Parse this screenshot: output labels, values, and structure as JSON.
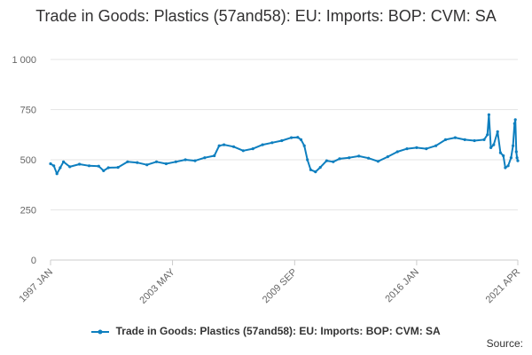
{
  "chart_data": {
    "type": "line",
    "title": "Trade in Goods: Plastics (57and58): EU: Imports: BOP: CVM: SA",
    "xlabel": "",
    "ylabel": "",
    "ylim": [
      0,
      1000
    ],
    "y_ticks": [
      0,
      250,
      500,
      750,
      1000
    ],
    "y_tick_labels": [
      "0",
      "250",
      "500",
      "750",
      "1 000"
    ],
    "x_range": [
      1997.0,
      2021.25
    ],
    "x_ticks": [
      {
        "label": "1997 JAN",
        "x": 1997.0
      },
      {
        "label": "2003 MAY",
        "x": 2003.33
      },
      {
        "label": "2009 SEP",
        "x": 2009.67
      },
      {
        "label": "2016 JAN",
        "x": 2016.0
      },
      {
        "label": "2021 APR",
        "x": 2021.25
      }
    ],
    "grid": true,
    "legend_position": "bottom",
    "color": "#0e7fbf",
    "series": [
      {
        "name": "Trade in Goods: Plastics (57and58): EU: Imports: BOP: CVM: SA",
        "points": [
          [
            1997.0,
            480
          ],
          [
            1997.17,
            470
          ],
          [
            1997.33,
            430
          ],
          [
            1997.5,
            460
          ],
          [
            1997.67,
            490
          ],
          [
            1998.0,
            465
          ],
          [
            1998.5,
            478
          ],
          [
            1999.0,
            470
          ],
          [
            1999.5,
            468
          ],
          [
            1999.75,
            445
          ],
          [
            2000.0,
            460
          ],
          [
            2000.5,
            462
          ],
          [
            2001.0,
            490
          ],
          [
            2001.5,
            486
          ],
          [
            2002.0,
            475
          ],
          [
            2002.5,
            490
          ],
          [
            2003.0,
            480
          ],
          [
            2003.5,
            490
          ],
          [
            2004.0,
            500
          ],
          [
            2004.5,
            495
          ],
          [
            2005.0,
            510
          ],
          [
            2005.5,
            520
          ],
          [
            2005.75,
            570
          ],
          [
            2006.0,
            575
          ],
          [
            2006.5,
            565
          ],
          [
            2007.0,
            545
          ],
          [
            2007.5,
            555
          ],
          [
            2008.0,
            575
          ],
          [
            2008.5,
            585
          ],
          [
            2009.0,
            595
          ],
          [
            2009.5,
            610
          ],
          [
            2009.83,
            612
          ],
          [
            2010.0,
            600
          ],
          [
            2010.17,
            570
          ],
          [
            2010.33,
            500
          ],
          [
            2010.5,
            450
          ],
          [
            2010.75,
            440
          ],
          [
            2011.0,
            462
          ],
          [
            2011.33,
            495
          ],
          [
            2011.67,
            490
          ],
          [
            2012.0,
            505
          ],
          [
            2012.5,
            510
          ],
          [
            2013.0,
            518
          ],
          [
            2013.5,
            508
          ],
          [
            2014.0,
            492
          ],
          [
            2014.5,
            515
          ],
          [
            2015.0,
            540
          ],
          [
            2015.5,
            555
          ],
          [
            2016.0,
            560
          ],
          [
            2016.5,
            555
          ],
          [
            2017.0,
            570
          ],
          [
            2017.5,
            600
          ],
          [
            2018.0,
            610
          ],
          [
            2018.5,
            600
          ],
          [
            2019.0,
            595
          ],
          [
            2019.5,
            600
          ],
          [
            2019.67,
            625
          ],
          [
            2019.75,
            725
          ],
          [
            2019.85,
            560
          ],
          [
            2020.0,
            575
          ],
          [
            2020.2,
            640
          ],
          [
            2020.35,
            535
          ],
          [
            2020.5,
            520
          ],
          [
            2020.6,
            460
          ],
          [
            2020.75,
            470
          ],
          [
            2020.9,
            510
          ],
          [
            2021.0,
            570
          ],
          [
            2021.08,
            680
          ],
          [
            2021.12,
            700
          ],
          [
            2021.17,
            540
          ],
          [
            2021.21,
            510
          ],
          [
            2021.25,
            495
          ]
        ]
      }
    ]
  },
  "source_label": "Source:"
}
